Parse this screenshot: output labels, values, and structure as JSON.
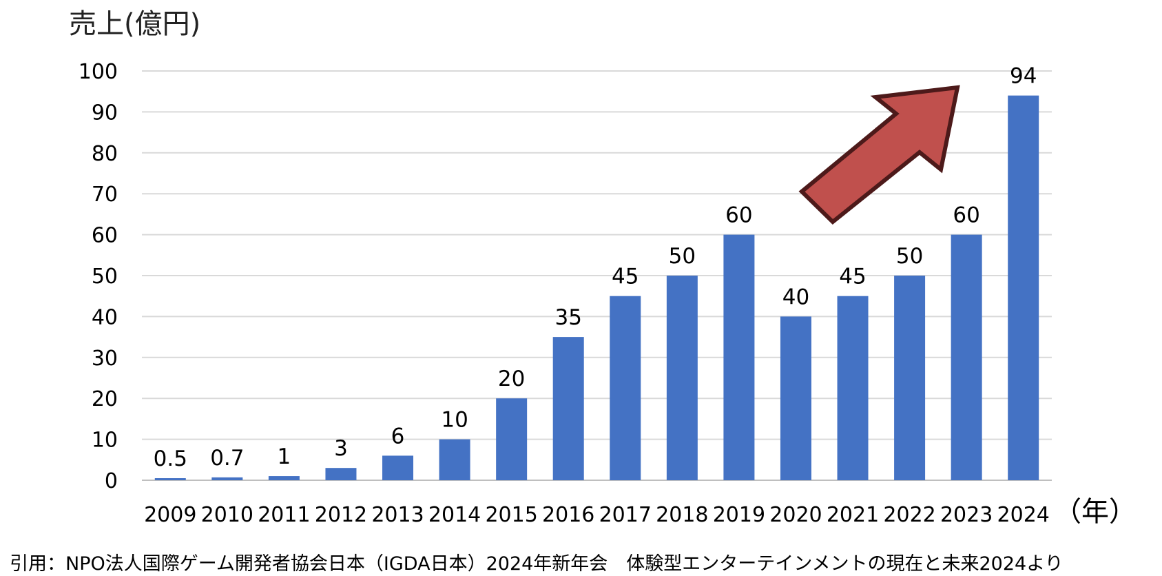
{
  "chart_data": {
    "type": "bar",
    "ylabel": "売上(億円)",
    "xunit": "（年）",
    "categories": [
      "2009",
      "2010",
      "2011",
      "2012",
      "2013",
      "2014",
      "2015",
      "2016",
      "2017",
      "2018",
      "2019",
      "2020",
      "2021",
      "2022",
      "2023",
      "2024"
    ],
    "values": [
      0.5,
      0.7,
      1,
      3,
      6,
      10,
      20,
      35,
      45,
      50,
      60,
      40,
      45,
      50,
      60,
      94
    ],
    "data_labels": [
      "0.5",
      "0.7",
      "1",
      "3",
      "6",
      "10",
      "20",
      "35",
      "45",
      "50",
      "60",
      "40",
      "45",
      "50",
      "60",
      "94"
    ],
    "yticks": [
      "0",
      "10",
      "20",
      "30",
      "40",
      "50",
      "60",
      "70",
      "80",
      "90",
      "100"
    ],
    "ylim": [
      0,
      100
    ],
    "grid": true,
    "colors": {
      "bar": "#4472c4",
      "arrow_fill": "#c0504d",
      "arrow_stroke": "#4d1a1a",
      "grid": "#d9d9d9"
    },
    "annotation": "red-arrow-up-right"
  },
  "source": "引用：NPO法人国際ゲーム開発者協会日本（IGDA日本）2024年新年会　体験型エンターテインメントの現在と未来2024より"
}
